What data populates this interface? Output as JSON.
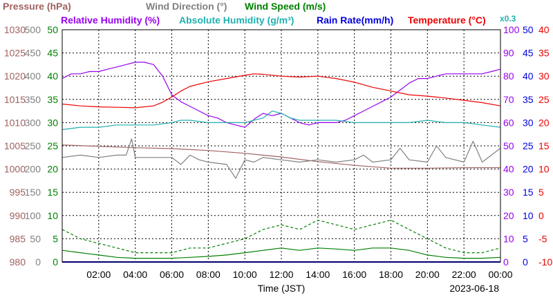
{
  "chart_data": {
    "type": "line",
    "xlabel": "Time (JST)",
    "date": "2023-06-18",
    "x_ticks": [
      "02:00",
      "04:00",
      "06:00",
      "08:00",
      "10:00",
      "12:00",
      "14:00",
      "16:00",
      "18:00",
      "20:00",
      "22:00",
      "00:00"
    ],
    "xlim_hours": [
      0,
      24
    ],
    "grid": true,
    "legend": [
      {
        "label": "Pressure (hPa)",
        "color": "#a06060"
      },
      {
        "label": "Wind Direction (°)",
        "color": "#808080"
      },
      {
        "label": "Wind Speed (m/s)",
        "color": "#008000"
      },
      {
        "label": "Relative Humidity (%)",
        "color": "#9900ee"
      },
      {
        "label": "Absolute Humidity (g/m³)",
        "color": "#20b0b0"
      },
      {
        "label": "Rain Rate(mm/h)",
        "color": "#0000dd"
      },
      {
        "label": "Temperature (°C)",
        "color": "#ee0000"
      }
    ],
    "abs_humidity_scale_note": "x0.3",
    "axes": {
      "pressure": {
        "ticks": [
          "1030",
          "1025",
          "1020",
          "1015",
          "1010",
          "1005",
          "1000",
          "995",
          "990",
          "985",
          "980"
        ],
        "range": [
          980,
          1030
        ],
        "color": "#a06060"
      },
      "wind_direction": {
        "ticks": [
          "500",
          "450",
          "400",
          "350",
          "300",
          "250",
          "200",
          "150",
          "100",
          "50",
          "0"
        ],
        "range": [
          0,
          500
        ],
        "color": "#808080"
      },
      "wind_speed": {
        "ticks": [
          "50",
          "45",
          "40",
          "35",
          "30",
          "25",
          "20",
          "15",
          "10",
          "5",
          "0"
        ],
        "range": [
          0,
          50
        ],
        "color": "#008000"
      },
      "humidity": {
        "ticks": [
          "100",
          "90",
          "80",
          "70",
          "60",
          "50",
          "40",
          "30",
          "20",
          "10",
          "0"
        ],
        "range": [
          0,
          100
        ],
        "color": "#9900ee"
      },
      "rain": {
        "ticks": [
          "50",
          "45",
          "40",
          "35",
          "30",
          "25",
          "20",
          "15",
          "10",
          "5",
          "0"
        ],
        "range": [
          0,
          50
        ],
        "color": "#0000dd"
      },
      "temperature": {
        "ticks": [
          "40",
          "35",
          "30",
          "25",
          "20",
          "15",
          "10",
          "5",
          "0",
          "-5",
          "-10"
        ],
        "range": [
          -10,
          40
        ],
        "color": "#ee0000"
      }
    },
    "series": [
      {
        "name": "Relative Humidity (%)",
        "axis": "humidity",
        "color": "#9900ee",
        "x": [
          0,
          0.5,
          1,
          1.5,
          2,
          2.5,
          3,
          3.5,
          4,
          4.5,
          5,
          5.5,
          6,
          6.5,
          7,
          7.5,
          8,
          8.5,
          9,
          9.5,
          10,
          10.3,
          10.6,
          11,
          11.5,
          12,
          12.5,
          13,
          13.5,
          14,
          14.5,
          15,
          15.5,
          16,
          16.5,
          17,
          17.5,
          18,
          18.5,
          19,
          19.5,
          20,
          20.5,
          21,
          21.5,
          22,
          22.5,
          23,
          23.5,
          24
        ],
        "y": [
          79,
          81,
          81,
          82,
          82,
          83,
          84,
          85,
          86,
          86,
          85,
          80,
          72,
          69,
          67,
          65,
          63,
          62,
          60,
          59,
          58,
          60,
          62,
          64,
          63,
          64,
          62,
          60,
          59,
          60,
          60,
          60,
          61,
          63,
          65,
          67,
          69,
          71,
          74,
          77,
          79,
          79,
          80,
          81,
          81,
          81,
          81,
          81,
          82,
          83
        ]
      },
      {
        "name": "Absolute Humidity (g/m³)",
        "axis": "humidity",
        "color": "#20b0b0",
        "x": [
          0,
          1,
          2,
          3,
          4,
          5,
          6,
          6.5,
          7,
          8,
          9,
          10,
          10.5,
          11,
          11.5,
          12,
          12.5,
          13,
          14,
          15,
          16,
          17,
          18,
          19,
          20,
          21,
          22,
          23,
          24
        ],
        "y": [
          57,
          58,
          58,
          59,
          59,
          59,
          60,
          61,
          61,
          60,
          60,
          60,
          61,
          62,
          65,
          64,
          62,
          61,
          61,
          61,
          60,
          60,
          60,
          60,
          61,
          60,
          60,
          59,
          58
        ]
      },
      {
        "name": "Temperature (°C)",
        "axis": "temperature",
        "color": "#ee0000",
        "x": [
          0,
          1,
          2,
          3,
          4,
          5,
          5.5,
          6,
          6.5,
          7,
          8,
          9,
          10,
          10.5,
          11,
          12,
          13,
          14,
          15,
          16,
          17,
          18,
          19,
          20,
          21,
          22,
          23,
          24
        ],
        "y": [
          24,
          23.6,
          23.4,
          23.3,
          23.2,
          23.6,
          24.4,
          25.5,
          26.8,
          27.8,
          28.8,
          29.5,
          30.2,
          30.5,
          30.4,
          30.0,
          29.8,
          30.0,
          29.5,
          28.7,
          27.6,
          26.8,
          26.0,
          25.7,
          25.3,
          24.8,
          24.3,
          23.6
        ]
      },
      {
        "name": "Pressure (hPa)",
        "axis": "pressure",
        "color": "#a06060",
        "x": [
          0,
          2,
          4,
          6,
          8,
          10,
          12,
          14,
          16,
          18,
          20,
          22,
          24
        ],
        "y": [
          1005.2,
          1004.9,
          1004.6,
          1004.4,
          1004.0,
          1003.4,
          1002.6,
          1001.6,
          1000.8,
          1000.2,
          1000.2,
          1000.3,
          1000.3
        ]
      },
      {
        "name": "Wind Direction (°)",
        "axis": "wind_direction",
        "color": "#808080",
        "x": [
          0,
          1,
          2,
          3,
          3.5,
          3.8,
          4,
          5,
          6,
          6.5,
          7,
          7.5,
          8,
          9,
          9.5,
          10,
          10.5,
          11,
          12,
          13,
          14,
          15,
          16,
          16.5,
          17,
          18,
          18.5,
          19,
          20,
          20.5,
          21,
          22,
          22.5,
          23,
          24
        ],
        "y": [
          225,
          230,
          225,
          230,
          230,
          265,
          225,
          225,
          225,
          210,
          230,
          220,
          215,
          210,
          180,
          220,
          215,
          225,
          220,
          215,
          220,
          215,
          220,
          230,
          215,
          220,
          245,
          220,
          215,
          250,
          225,
          215,
          260,
          215,
          245
        ]
      },
      {
        "name": "Wind Speed (m/s) max",
        "axis": "wind_speed",
        "color": "#008000",
        "dash": true,
        "x": [
          0,
          1,
          2,
          3,
          4,
          5,
          6,
          7,
          8,
          9,
          10,
          11,
          12,
          13,
          14,
          15,
          16,
          17,
          18,
          19,
          20,
          21,
          22,
          23,
          24
        ],
        "y": [
          7,
          5,
          4,
          3,
          2,
          2,
          2,
          3,
          3,
          4,
          5,
          7,
          8,
          7,
          9,
          8,
          7,
          8,
          9,
          7,
          5,
          3,
          2,
          2,
          3
        ]
      },
      {
        "name": "Wind Speed (m/s) avg",
        "axis": "wind_speed",
        "color": "#008000",
        "x": [
          0,
          1,
          2,
          3,
          4,
          5,
          6,
          7,
          8,
          9,
          10,
          11,
          12,
          13,
          14,
          15,
          16,
          17,
          18,
          19,
          20,
          21,
          22,
          23,
          24
        ],
        "y": [
          2.5,
          2,
          1.5,
          1,
          0.8,
          0.8,
          0.8,
          1,
          1.2,
          1.5,
          2,
          2.5,
          3,
          2.5,
          3,
          2.8,
          2.5,
          3,
          3,
          2.5,
          1.5,
          1,
          0.8,
          0.8,
          1
        ]
      },
      {
        "name": "Rain Rate(mm/h)",
        "axis": "rain",
        "color": "#0000dd",
        "x": [
          0,
          24
        ],
        "y": [
          0,
          0
        ]
      }
    ]
  }
}
